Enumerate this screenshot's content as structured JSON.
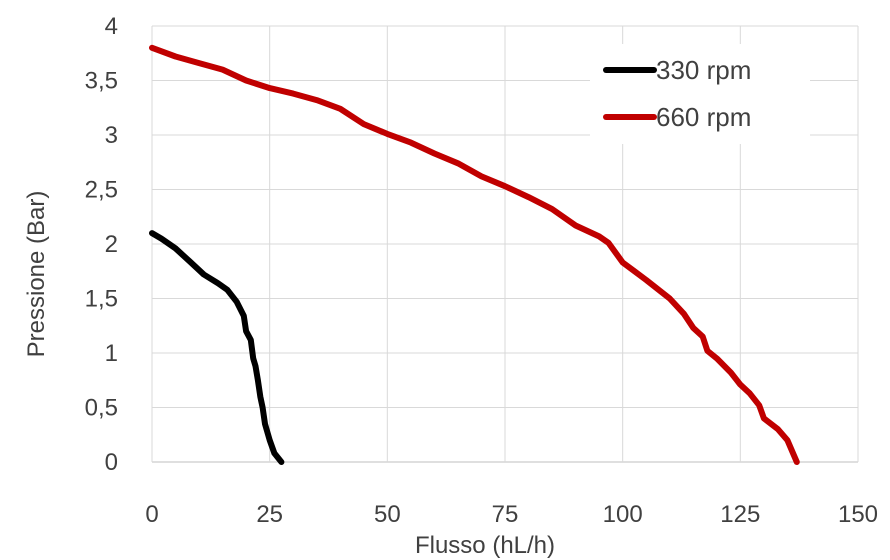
{
  "chart_data": {
    "type": "line",
    "title": "",
    "xlabel": "Flusso (hL/h)",
    "ylabel": "Pressione (Bar)",
    "xlim": [
      0,
      150
    ],
    "ylim": [
      0,
      4
    ],
    "x_ticks": [
      "0",
      "25",
      "50",
      "75",
      "100",
      "125",
      "150"
    ],
    "y_ticks": [
      "0",
      "0,5",
      "1",
      "1,5",
      "2",
      "2,5",
      "3",
      "3,5",
      "4"
    ],
    "grid": "vertical and horizontal",
    "legend_position": "top-right",
    "series": [
      {
        "name": "330 rpm",
        "color": "#000000",
        "points": [
          [
            0,
            2.1
          ],
          [
            2,
            2.05
          ],
          [
            5,
            1.96
          ],
          [
            8,
            1.84
          ],
          [
            11,
            1.72
          ],
          [
            14,
            1.64
          ],
          [
            16,
            1.58
          ],
          [
            18,
            1.47
          ],
          [
            19.5,
            1.34
          ],
          [
            20,
            1.2
          ],
          [
            21,
            1.12
          ],
          [
            21.5,
            0.95
          ],
          [
            22,
            0.88
          ],
          [
            22.5,
            0.75
          ],
          [
            23,
            0.6
          ],
          [
            23.5,
            0.5
          ],
          [
            24,
            0.35
          ],
          [
            25,
            0.2
          ],
          [
            26,
            0.08
          ],
          [
            27.5,
            0.0
          ]
        ]
      },
      {
        "name": "660 rpm",
        "color": "#c00000",
        "points": [
          [
            0,
            3.8
          ],
          [
            5,
            3.72
          ],
          [
            10,
            3.66
          ],
          [
            15,
            3.6
          ],
          [
            20,
            3.5
          ],
          [
            25,
            3.43
          ],
          [
            30,
            3.38
          ],
          [
            35,
            3.32
          ],
          [
            40,
            3.24
          ],
          [
            45,
            3.1
          ],
          [
            50,
            3.01
          ],
          [
            55,
            2.93
          ],
          [
            60,
            2.83
          ],
          [
            65,
            2.74
          ],
          [
            70,
            2.62
          ],
          [
            75,
            2.53
          ],
          [
            80,
            2.43
          ],
          [
            85,
            2.32
          ],
          [
            90,
            2.17
          ],
          [
            95,
            2.07
          ],
          [
            97,
            2.01
          ],
          [
            100,
            1.83
          ],
          [
            105,
            1.67
          ],
          [
            110,
            1.5
          ],
          [
            113,
            1.36
          ],
          [
            115,
            1.23
          ],
          [
            117,
            1.15
          ],
          [
            118,
            1.02
          ],
          [
            120,
            0.95
          ],
          [
            123,
            0.82
          ],
          [
            125,
            0.71
          ],
          [
            127,
            0.63
          ],
          [
            129,
            0.52
          ],
          [
            130,
            0.4
          ],
          [
            133,
            0.3
          ],
          [
            135,
            0.2
          ],
          [
            137,
            0.0
          ]
        ]
      }
    ]
  }
}
